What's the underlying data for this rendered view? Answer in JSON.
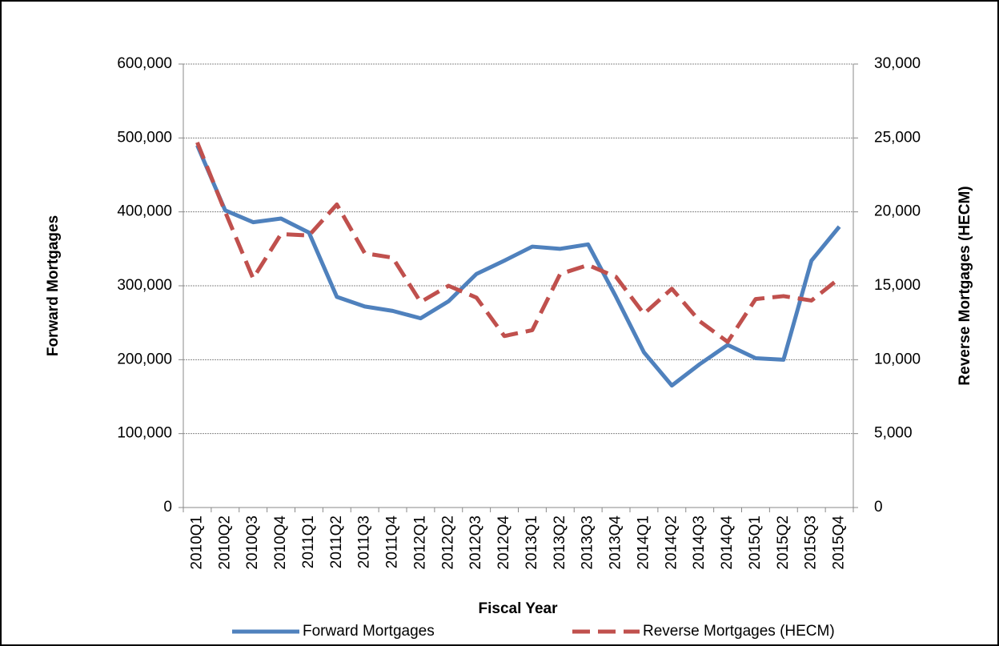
{
  "chart_data": {
    "type": "line",
    "x_label": "Fiscal Year",
    "y_label": "Forward Mortgages",
    "y2_label": "Reverse Mortgages (HECM)",
    "categories": [
      "2010Q1",
      "2010Q2",
      "2010Q3",
      "2010Q4",
      "2011Q1",
      "2011Q2",
      "2011Q3",
      "2011Q4",
      "2012Q1",
      "2012Q2",
      "2012Q3",
      "2012Q4",
      "2013Q1",
      "2013Q2",
      "2013Q3",
      "2013Q4",
      "2014Q1",
      "2014Q2",
      "2014Q3",
      "2014Q4",
      "2015Q1",
      "2015Q2",
      "2015Q3",
      "2015Q4"
    ],
    "series": [
      {
        "name": "Forward Mortgages",
        "color": "#4f81bd",
        "axis": "y",
        "dashed": false,
        "values": [
          490000,
          402000,
          386000,
          391000,
          372000,
          285000,
          272000,
          266000,
          256000,
          279000,
          316000,
          334000,
          353000,
          350000,
          356000,
          285000,
          210000,
          165000,
          194000,
          220000,
          202000,
          200000,
          334000,
          380000
        ]
      },
      {
        "name": "Reverse Mortgages (HECM)",
        "color": "#c0504d",
        "axis": "y2",
        "dashed": true,
        "values": [
          24700,
          20000,
          15500,
          18500,
          18400,
          20500,
          17200,
          16900,
          13900,
          15000,
          14200,
          11600,
          12000,
          15800,
          16400,
          15600,
          13100,
          14800,
          12600,
          11200,
          14100,
          14300,
          14000,
          15500
        ]
      }
    ],
    "ylim": [
      0,
      600000
    ],
    "yticks": [
      0,
      {
        "value": 100000,
        "label": "100,000"
      },
      {
        "value": 200000,
        "label": "200,000"
      },
      {
        "value": 300000,
        "label": "300,000"
      },
      {
        "value": 400000,
        "label": "400,000"
      },
      {
        "value": 500000,
        "label": "500,000"
      },
      {
        "value": 600000,
        "label": "600,000"
      }
    ],
    "y2lim": [
      0,
      30000
    ],
    "y2ticks": [
      0,
      {
        "value": 5000,
        "label": "5,000"
      },
      {
        "value": 10000,
        "label": "10,000"
      },
      {
        "value": 15000,
        "label": "15,000"
      },
      {
        "value": 20000,
        "label": "20,000"
      },
      {
        "value": 25000,
        "label": "25,000"
      },
      {
        "value": 30000,
        "label": "30,000"
      }
    ],
    "grid": true,
    "legend": "bottom"
  }
}
